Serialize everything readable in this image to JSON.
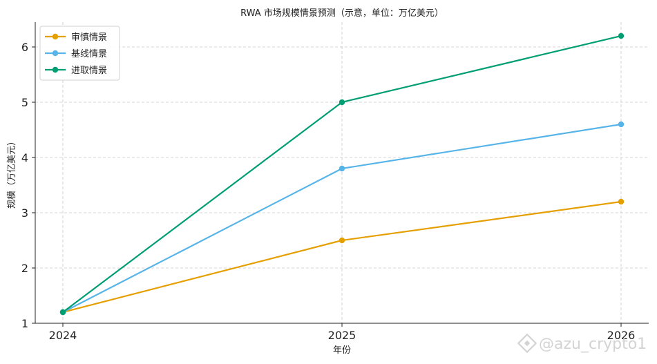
{
  "chart_data": {
    "type": "line",
    "title": "RWA 市场规模情景预测（示意，单位：万亿美元）",
    "xlabel": "年份",
    "ylabel": "规模（万亿美元）",
    "x": [
      "2024",
      "2025",
      "2026"
    ],
    "ylim": [
      1,
      6.45
    ],
    "yticks": [
      1,
      2,
      3,
      4,
      5,
      6
    ],
    "grid": true,
    "legend_position": "top-left",
    "series": [
      {
        "name": "审慎情景",
        "color": "#E69F00",
        "values": [
          1.2,
          2.5,
          3.2
        ]
      },
      {
        "name": "基线情景",
        "color": "#56B4E9",
        "values": [
          1.2,
          3.8,
          4.6
        ]
      },
      {
        "name": "进取情景",
        "color": "#009E73",
        "values": [
          1.2,
          5.0,
          6.2
        ]
      }
    ]
  },
  "watermark": {
    "text": "@azu_crypto1",
    "icon": "binance-diamond-icon"
  }
}
